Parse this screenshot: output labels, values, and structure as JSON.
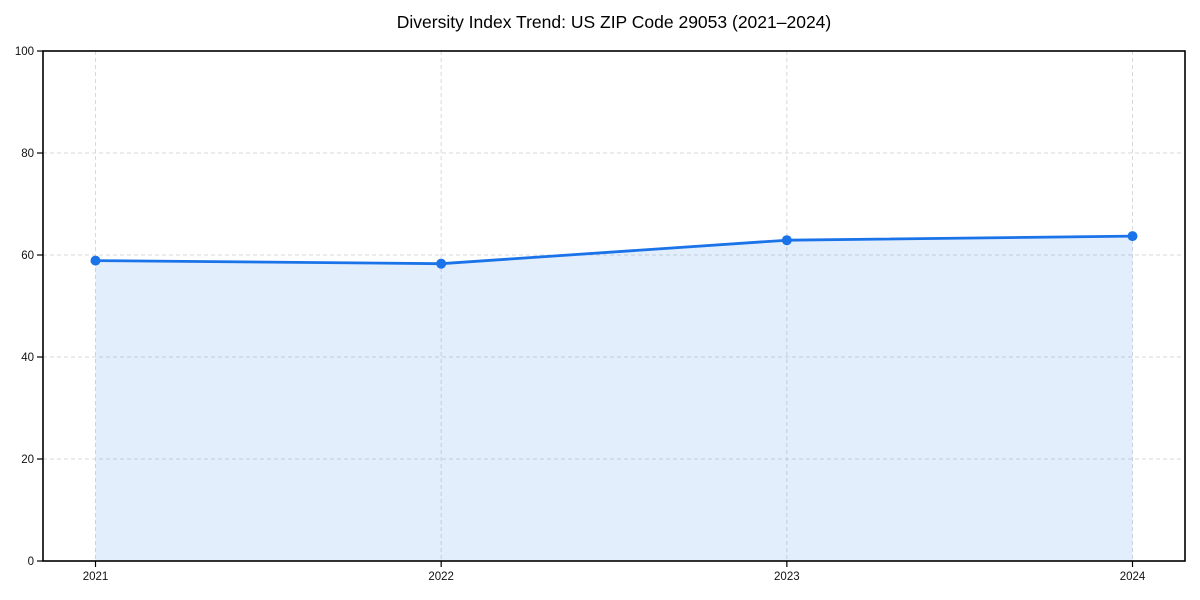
{
  "chart_data": {
    "type": "area",
    "title": "Diversity Index Trend: US ZIP Code 29053 (2021–2024)",
    "x": [
      2021,
      2022,
      2023,
      2024
    ],
    "x_tick_labels": [
      "2021",
      "2022",
      "2023",
      "2024"
    ],
    "series": [
      {
        "name": "Diversity Index",
        "values": [
          58.9,
          58.3,
          62.9,
          63.7
        ]
      }
    ],
    "xlabel": "",
    "ylabel": "",
    "ylim": [
      0,
      100
    ],
    "yticks": [
      0,
      20,
      40,
      60,
      80,
      100
    ],
    "grid": true,
    "grid_style": "dashed",
    "legend": false,
    "colors": {
      "line": "#1a73e8",
      "marker": "#1a73e8",
      "fill": "#1a73e8",
      "fill_opacity": 0.12,
      "grid": "#d9d9d9",
      "axis": "#000000",
      "tick_label": "#111111",
      "background": "#ffffff"
    }
  }
}
